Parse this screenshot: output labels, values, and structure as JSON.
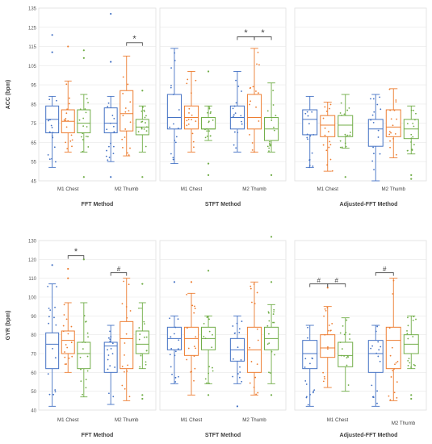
{
  "chart_data": {
    "type": "box",
    "series_colors": [
      "#4472c4",
      "#ed7d31",
      "#70ad47"
    ],
    "rows": [
      {
        "ylabel": "ACC (bpm)",
        "ylim": [
          45,
          135
        ],
        "yticks": [
          45,
          55,
          65,
          75,
          85,
          95,
          105,
          115,
          125,
          135
        ],
        "panels": [
          {
            "title": "FFT Method",
            "groups": [
              {
                "label": "M1 Chest",
                "boxes": [
                  {
                    "q1": 70,
                    "median": 77,
                    "q3": 84,
                    "whisker_low": 52,
                    "whisker_high": 89,
                    "outliers": [
                      112,
                      121
                    ]
                  },
                  {
                    "q1": 70,
                    "median": 76,
                    "q3": 82,
                    "whisker_low": 60,
                    "whisker_high": 97,
                    "outliers": [
                      115
                    ]
                  },
                  {
                    "q1": 70,
                    "median": 75,
                    "q3": 82,
                    "whisker_low": 60,
                    "whisker_high": 90,
                    "outliers": [
                      47,
                      109,
                      113
                    ]
                  }
                ]
              },
              {
                "label": "M2 Thumb",
                "boxes": [
                  {
                    "q1": 70,
                    "median": 75,
                    "q3": 83,
                    "whisker_low": 55,
                    "whisker_high": 89,
                    "outliers": [
                      47,
                      107,
                      132
                    ]
                  },
                  {
                    "q1": 71,
                    "median": 80,
                    "q3": 92,
                    "whisker_low": 58,
                    "whisker_high": 110,
                    "outliers": []
                  },
                  {
                    "q1": 69,
                    "median": 73,
                    "q3": 77,
                    "whisker_low": 60,
                    "whisker_high": 84,
                    "outliers": [
                      47,
                      92
                    ]
                  }
                ]
              }
            ],
            "annotations": [
              {
                "symbol": "*",
                "group": 1,
                "from": 1,
                "to": 2,
                "y": 117
              }
            ]
          },
          {
            "title": "STFT Method",
            "groups": [
              {
                "label": "M1 Chest",
                "boxes": [
                  {
                    "q1": 72,
                    "median": 78,
                    "q3": 90,
                    "whisker_low": 54,
                    "whisker_high": 114,
                    "outliers": []
                  },
                  {
                    "q1": 72,
                    "median": 78,
                    "q3": 84,
                    "whisker_low": 60,
                    "whisker_high": 102,
                    "outliers": []
                  },
                  {
                    "q1": 72,
                    "median": 72,
                    "q3": 78,
                    "whisker_low": 66,
                    "whisker_high": 84,
                    "outliers": [
                      48,
                      54,
                      102
                    ]
                  }
                ]
              },
              {
                "label": "M2 Thumb",
                "boxes": [
                  {
                    "q1": 72,
                    "median": 78,
                    "q3": 84,
                    "whisker_low": 60,
                    "whisker_high": 102,
                    "outliers": []
                  },
                  {
                    "q1": 72,
                    "median": 78,
                    "q3": 90,
                    "whisker_low": 60,
                    "whisker_high": 114,
                    "outliers": []
                  },
                  {
                    "q1": 66,
                    "median": 72,
                    "q3": 78,
                    "whisker_low": 60,
                    "whisker_high": 96,
                    "outliers": [
                      48
                    ]
                  }
                ]
              }
            ],
            "annotations": [
              {
                "symbol": "*",
                "group": 1,
                "from": 0,
                "to": 1,
                "y": 120
              },
              {
                "symbol": "*",
                "group": 1,
                "from": 1,
                "to": 2,
                "y": 120
              }
            ]
          },
          {
            "title": "Adjusted-FFT Method",
            "groups": [
              {
                "label": "M1 Chest",
                "boxes": [
                  {
                    "q1": 69,
                    "median": 77,
                    "q3": 82,
                    "whisker_low": 52,
                    "whisker_high": 89,
                    "outliers": []
                  },
                  {
                    "q1": 68,
                    "median": 74,
                    "q3": 79,
                    "whisker_low": 50,
                    "whisker_high": 86,
                    "outliers": []
                  },
                  {
                    "q1": 68,
                    "median": 74,
                    "q3": 79,
                    "whisker_low": 62,
                    "whisker_high": 90,
                    "outliers": [
                      47
                    ]
                  }
                ]
              },
              {
                "label": "M2 Thumb",
                "boxes": [
                  {
                    "q1": 63,
                    "median": 72,
                    "q3": 77,
                    "whisker_low": 45,
                    "whisker_high": 90,
                    "outliers": []
                  },
                  {
                    "q1": 68,
                    "median": 73,
                    "q3": 82,
                    "whisker_low": 57,
                    "whisker_high": 93,
                    "outliers": []
                  },
                  {
                    "q1": 67,
                    "median": 72,
                    "q3": 77,
                    "whisker_low": 59,
                    "whisker_high": 84,
                    "outliers": [
                      46,
                      48
                    ]
                  }
                ]
              }
            ],
            "annotations": []
          }
        ]
      },
      {
        "ylabel": "GYR (bpm)",
        "ylim": [
          40,
          130
        ],
        "yticks": [
          40,
          50,
          60,
          70,
          80,
          90,
          100,
          110,
          120,
          130
        ],
        "panels": [
          {
            "title": "FFT Method",
            "groups": [
              {
                "label": "M1 Chest",
                "boxes": [
                  {
                    "q1": 62,
                    "median": 75,
                    "q3": 81,
                    "whisker_low": 42,
                    "whisker_high": 107,
                    "outliers": [
                      117
                    ]
                  },
                  {
                    "q1": 70,
                    "median": 77,
                    "q3": 82,
                    "whisker_low": 60,
                    "whisker_high": 97,
                    "outliers": [
                      110,
                      115
                    ]
                  },
                  {
                    "q1": 62,
                    "median": 70,
                    "q3": 76,
                    "whisker_low": 47,
                    "whisker_high": 97,
                    "outliers": [
                      120
                    ]
                  }
                ]
              },
              {
                "label": "M2 Thumb",
                "boxes": [
                  {
                    "q1": 60,
                    "median": 74,
                    "q3": 76,
                    "whisker_low": 43,
                    "whisker_high": 85,
                    "outliers": []
                  },
                  {
                    "q1": 62,
                    "median": 78,
                    "q3": 87,
                    "whisker_low": 45,
                    "whisker_high": 110,
                    "outliers": []
                  },
                  {
                    "q1": 70,
                    "median": 75,
                    "q3": 82,
                    "whisker_low": 62,
                    "whisker_high": 97,
                    "outliers": [
                      46,
                      48,
                      107
                    ]
                  }
                ]
              }
            ],
            "annotations": [
              {
                "symbol": "*",
                "group": 0,
                "from": 1,
                "to": 2,
                "y": 122
              },
              {
                "symbol": "#",
                "group": 1,
                "from": 0,
                "to": 1,
                "y": 113
              }
            ]
          },
          {
            "title": "STFT Method",
            "groups": [
              {
                "label": "M1 Chest",
                "boxes": [
                  {
                    "q1": 72,
                    "median": 78,
                    "q3": 84,
                    "whisker_low": 54,
                    "whisker_high": 90,
                    "outliers": [
                      108
                    ]
                  },
                  {
                    "q1": 69,
                    "median": 78,
                    "q3": 84,
                    "whisker_low": 48,
                    "whisker_high": 102,
                    "outliers": [
                      108
                    ]
                  },
                  {
                    "q1": 72,
                    "median": 78,
                    "q3": 84,
                    "whisker_low": 54,
                    "whisker_high": 90,
                    "outliers": [
                      48,
                      114
                    ]
                  }
                ]
              },
              {
                "label": "M2 Thumb",
                "boxes": [
                  {
                    "q1": 66,
                    "median": 72,
                    "q3": 78,
                    "whisker_low": 54,
                    "whisker_high": 90,
                    "outliers": [
                      42
                    ]
                  },
                  {
                    "q1": 60,
                    "median": 72,
                    "q3": 84,
                    "whisker_low": 48,
                    "whisker_high": 108,
                    "outliers": []
                  },
                  {
                    "q1": 72,
                    "median": 78,
                    "q3": 84,
                    "whisker_low": 54,
                    "whisker_high": 96,
                    "outliers": [
                      48,
                      108,
                      132
                    ]
                  }
                ]
              }
            ],
            "annotations": []
          },
          {
            "title": "Adjusted-FFT Method",
            "groups": [
              {
                "label": "M1 Chest",
                "boxes": [
                  {
                    "q1": 62,
                    "median": 70,
                    "q3": 77,
                    "whisker_low": 42,
                    "whisker_high": 85,
                    "outliers": []
                  },
                  {
                    "q1": 68,
                    "median": 73,
                    "q3": 80,
                    "whisker_low": 52,
                    "whisker_high": 95,
                    "outliers": [
                      105
                    ]
                  },
                  {
                    "q1": 63,
                    "median": 69,
                    "q3": 76,
                    "whisker_low": 50,
                    "whisker_high": 89,
                    "outliers": []
                  }
                ]
              },
              {
                "label": "M2 Thumb",
                "boxes": [
                  {
                    "q1": 60,
                    "median": 70,
                    "q3": 77,
                    "whisker_low": 42,
                    "whisker_high": 85,
                    "outliers": []
                  },
                  {
                    "q1": 62,
                    "median": 77,
                    "q3": 84,
                    "whisker_low": 45,
                    "whisker_high": 110,
                    "outliers": []
                  },
                  {
                    "q1": 70,
                    "median": 75,
                    "q3": 80,
                    "whisker_low": 62,
                    "whisker_high": 90,
                    "outliers": [
                      46,
                      48
                    ]
                  }
                ]
              }
            ],
            "annotations": [
              {
                "symbol": "#",
                "group": 0,
                "from": 0,
                "to": 1,
                "y": 107
              },
              {
                "symbol": "#",
                "group": 0,
                "from": 1,
                "to": 2,
                "y": 107
              },
              {
                "symbol": "#",
                "group": 1,
                "from": 0,
                "to": 1,
                "y": 113
              }
            ]
          }
        ]
      }
    ]
  }
}
